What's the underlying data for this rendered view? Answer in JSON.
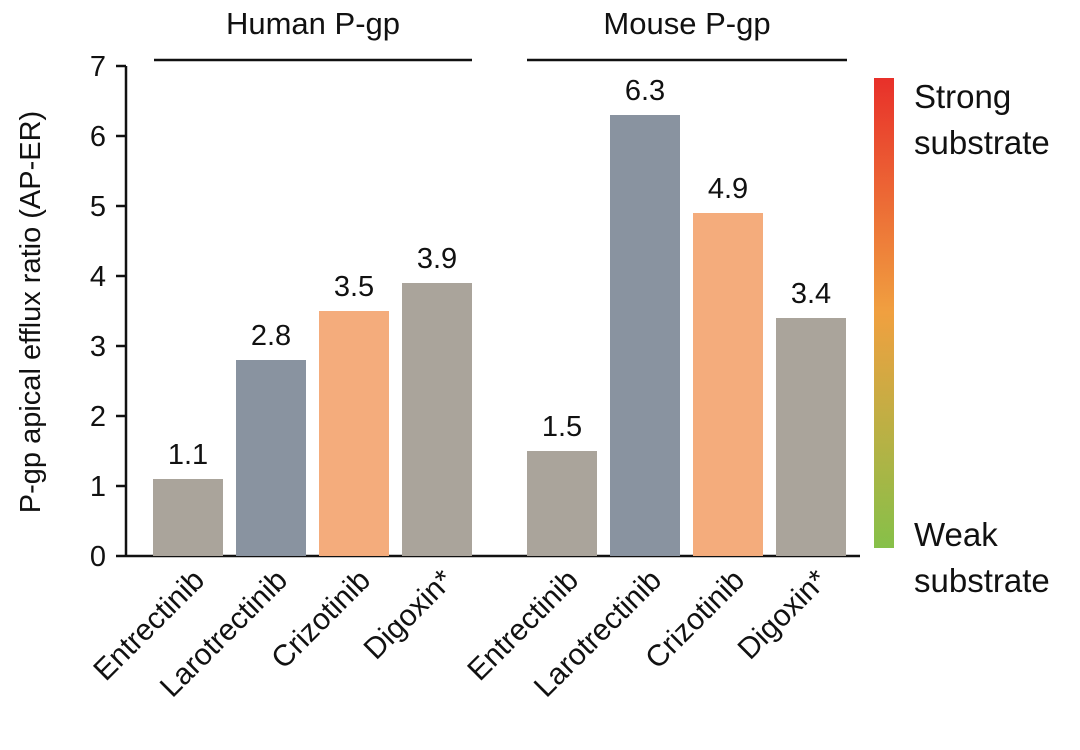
{
  "chart_data": {
    "type": "bar",
    "ylabel": "P-gp apical efflux ratio (AP-ER)",
    "ylim": [
      0,
      7
    ],
    "yticks": [
      "0",
      "1",
      "2",
      "3",
      "4",
      "5",
      "6",
      "7"
    ],
    "groups": [
      {
        "title": "Human P-gp",
        "bars": [
          {
            "category": "Entrectinib",
            "value": 1.1,
            "label": "1.1",
            "color": "#aaa49b"
          },
          {
            "category": "Larotrectinib",
            "value": 2.8,
            "label": "2.8",
            "color": "#8993a0"
          },
          {
            "category": "Crizotinib",
            "value": 3.5,
            "label": "3.5",
            "color": "#f4ac7c"
          },
          {
            "category": "Digoxin*",
            "value": 3.9,
            "label": "3.9",
            "color": "#aaa49b"
          }
        ]
      },
      {
        "title": "Mouse P-gp",
        "bars": [
          {
            "category": "Entrectinib",
            "value": 1.5,
            "label": "1.5",
            "color": "#aaa49b"
          },
          {
            "category": "Larotrectinib",
            "value": 6.3,
            "label": "6.3",
            "color": "#8993a0"
          },
          {
            "category": "Crizotinib",
            "value": 4.9,
            "label": "4.9",
            "color": "#f4ac7c"
          },
          {
            "category": "Digoxin*",
            "value": 3.4,
            "label": "3.4",
            "color": "#aaa49b"
          }
        ]
      }
    ],
    "legend": {
      "placement": "right",
      "gradient_top": "#e8302a",
      "gradient_mid": "#f0a040",
      "gradient_bottom": "#86c049",
      "top_label": [
        "Strong",
        "substrate"
      ],
      "bottom_label": [
        "Weak",
        "substrate"
      ]
    }
  }
}
